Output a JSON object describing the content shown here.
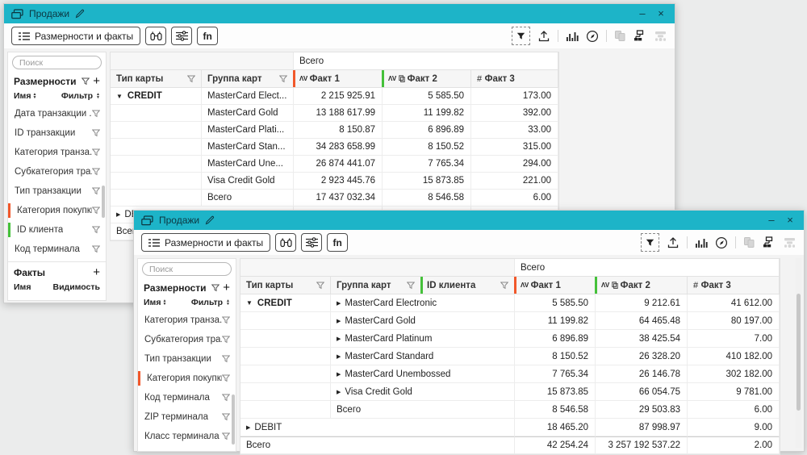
{
  "colors": {
    "titlebar": "#1db4c8",
    "accent_orange": "#f1582b",
    "accent_green": "#45c13a"
  },
  "w1": {
    "title": "Продажи",
    "controls": {
      "minimize": "–",
      "close": "×"
    },
    "toolbar": {
      "dims_facts": "Размерности и факты",
      "fn": "fn"
    },
    "sidebar": {
      "search_placeholder": "Поиск",
      "dimensions_header": "Размерности",
      "add_label": "+",
      "name_header": "Имя",
      "filter_header": "Фильтр",
      "items": [
        {
          "label": "Дата транзакции ..."
        },
        {
          "label": "ID транзакции"
        },
        {
          "label": "Категория транза..."
        },
        {
          "label": "Субкатегория тра..."
        },
        {
          "label": "Тип транзакции"
        },
        {
          "label": "Категория покупки",
          "bar": "orange"
        },
        {
          "label": "ID клиента",
          "bar": "green"
        },
        {
          "label": "Код терминала"
        }
      ],
      "facts_header": "Факты",
      "facts_add_label": "+",
      "facts_name_header": "Имя",
      "facts_visibility_header": "Видимость"
    },
    "table": {
      "total_header": "Всего",
      "dim_columns": [
        "Тип карты",
        "Группа карт"
      ],
      "fact_columns": [
        {
          "prefix": "ΛV",
          "label": "Факт 1",
          "bar": "orange"
        },
        {
          "prefix": "ΛV",
          "label": "Факт 2",
          "bar": "green",
          "copy_icon": true
        },
        {
          "prefix": "#",
          "label": "Факт 3"
        }
      ],
      "rows": [
        {
          "group": "CREDIT",
          "group_arrow": "▼",
          "name": "MasterCard Elect...",
          "values": [
            "2 215 925.91",
            "5 585.50",
            "173.00"
          ]
        },
        {
          "name": "MasterCard Gold",
          "values": [
            "13 188 617.99",
            "11 199.82",
            "392.00"
          ]
        },
        {
          "name": "MasterCard Plati...",
          "values": [
            "8 150.87",
            "6 896.89",
            "33.00"
          ]
        },
        {
          "name": "MasterCard Stan...",
          "values": [
            "34 283 658.99",
            "8 150.52",
            "315.00"
          ]
        },
        {
          "name": "MasterCard Une...",
          "values": [
            "26 874 441.07",
            "7 765.34",
            "294.00"
          ]
        },
        {
          "name": "Visa Credit Gold",
          "values": [
            "2 923 445.76",
            "15 873.85",
            "221.00"
          ]
        },
        {
          "name": "Всего",
          "values": [
            "17 437 032.34",
            "8 546.58",
            "6.00"
          ]
        },
        {
          "full": "DEBIT",
          "full_arrow": "▶",
          "values": [
            "",
            "",
            ""
          ]
        },
        {
          "full": "Всего",
          "values": [
            "",
            "",
            ""
          ]
        }
      ]
    }
  },
  "w2": {
    "title": "Продажи",
    "controls": {
      "minimize": "–",
      "close": "×"
    },
    "toolbar": {
      "dims_facts": "Размерности и факты",
      "fn": "fn"
    },
    "sidebar": {
      "search_placeholder": "Поиск",
      "dimensions_header": "Размерности",
      "add_label": "+",
      "name_header": "Имя",
      "filter_header": "Фильтр",
      "items": [
        {
          "label": "Категория транза..."
        },
        {
          "label": "Субкатегория тра..."
        },
        {
          "label": "Тип транзакции"
        },
        {
          "label": "Категория покупки",
          "bar": "orange"
        },
        {
          "label": "Код терминала"
        },
        {
          "label": "ZIP терминала"
        },
        {
          "label": "Класс терминала"
        }
      ]
    },
    "table": {
      "total_header": "Всего",
      "dim_columns": [
        "Тип карты",
        "Группа карт",
        "ID клиента"
      ],
      "fact_columns": [
        {
          "prefix": "ΛV",
          "label": "Факт 1",
          "bar": "orange"
        },
        {
          "prefix": "ΛV",
          "label": "Факт 2",
          "bar": "green",
          "copy_icon": true
        },
        {
          "prefix": "#",
          "label": "Факт 3"
        }
      ],
      "rows": [
        {
          "group": "CREDIT",
          "group_arrow": "▼",
          "name": "MasterCard Electronic",
          "name_arrow": "▶",
          "values": [
            "5 585.50",
            "9 212.61",
            "41 612.00"
          ]
        },
        {
          "name": "MasterCard Gold",
          "name_arrow": "▶",
          "values": [
            "11 199.82",
            "64 465.48",
            "80 197.00"
          ]
        },
        {
          "name": "MasterCard Platinum",
          "name_arrow": "▶",
          "values": [
            "6 896.89",
            "38 425.54",
            "7.00"
          ]
        },
        {
          "name": "MasterCard Standard",
          "name_arrow": "▶",
          "values": [
            "8 150.52",
            "26 328.20",
            "410 182.00"
          ]
        },
        {
          "name": "MasterCard Unembossed",
          "name_arrow": "▶",
          "values": [
            "7 765.34",
            "26 146.78",
            "302 182.00"
          ]
        },
        {
          "name": "Visa Credit Gold",
          "name_arrow": "▶",
          "values": [
            "15 873.85",
            "66 054.75",
            "9 781.00"
          ]
        },
        {
          "name": "Всего",
          "values": [
            "8 546.58",
            "29 503.83",
            "6.00"
          ]
        },
        {
          "full": "DEBIT",
          "full_arrow": "▶",
          "values": [
            "18 465.20",
            "87 998.97",
            "9.00"
          ]
        },
        {
          "full": "Всего",
          "values": [
            "42 254.24",
            "3 257 192 537.22",
            "2.00"
          ],
          "strong_top": true
        }
      ]
    }
  }
}
